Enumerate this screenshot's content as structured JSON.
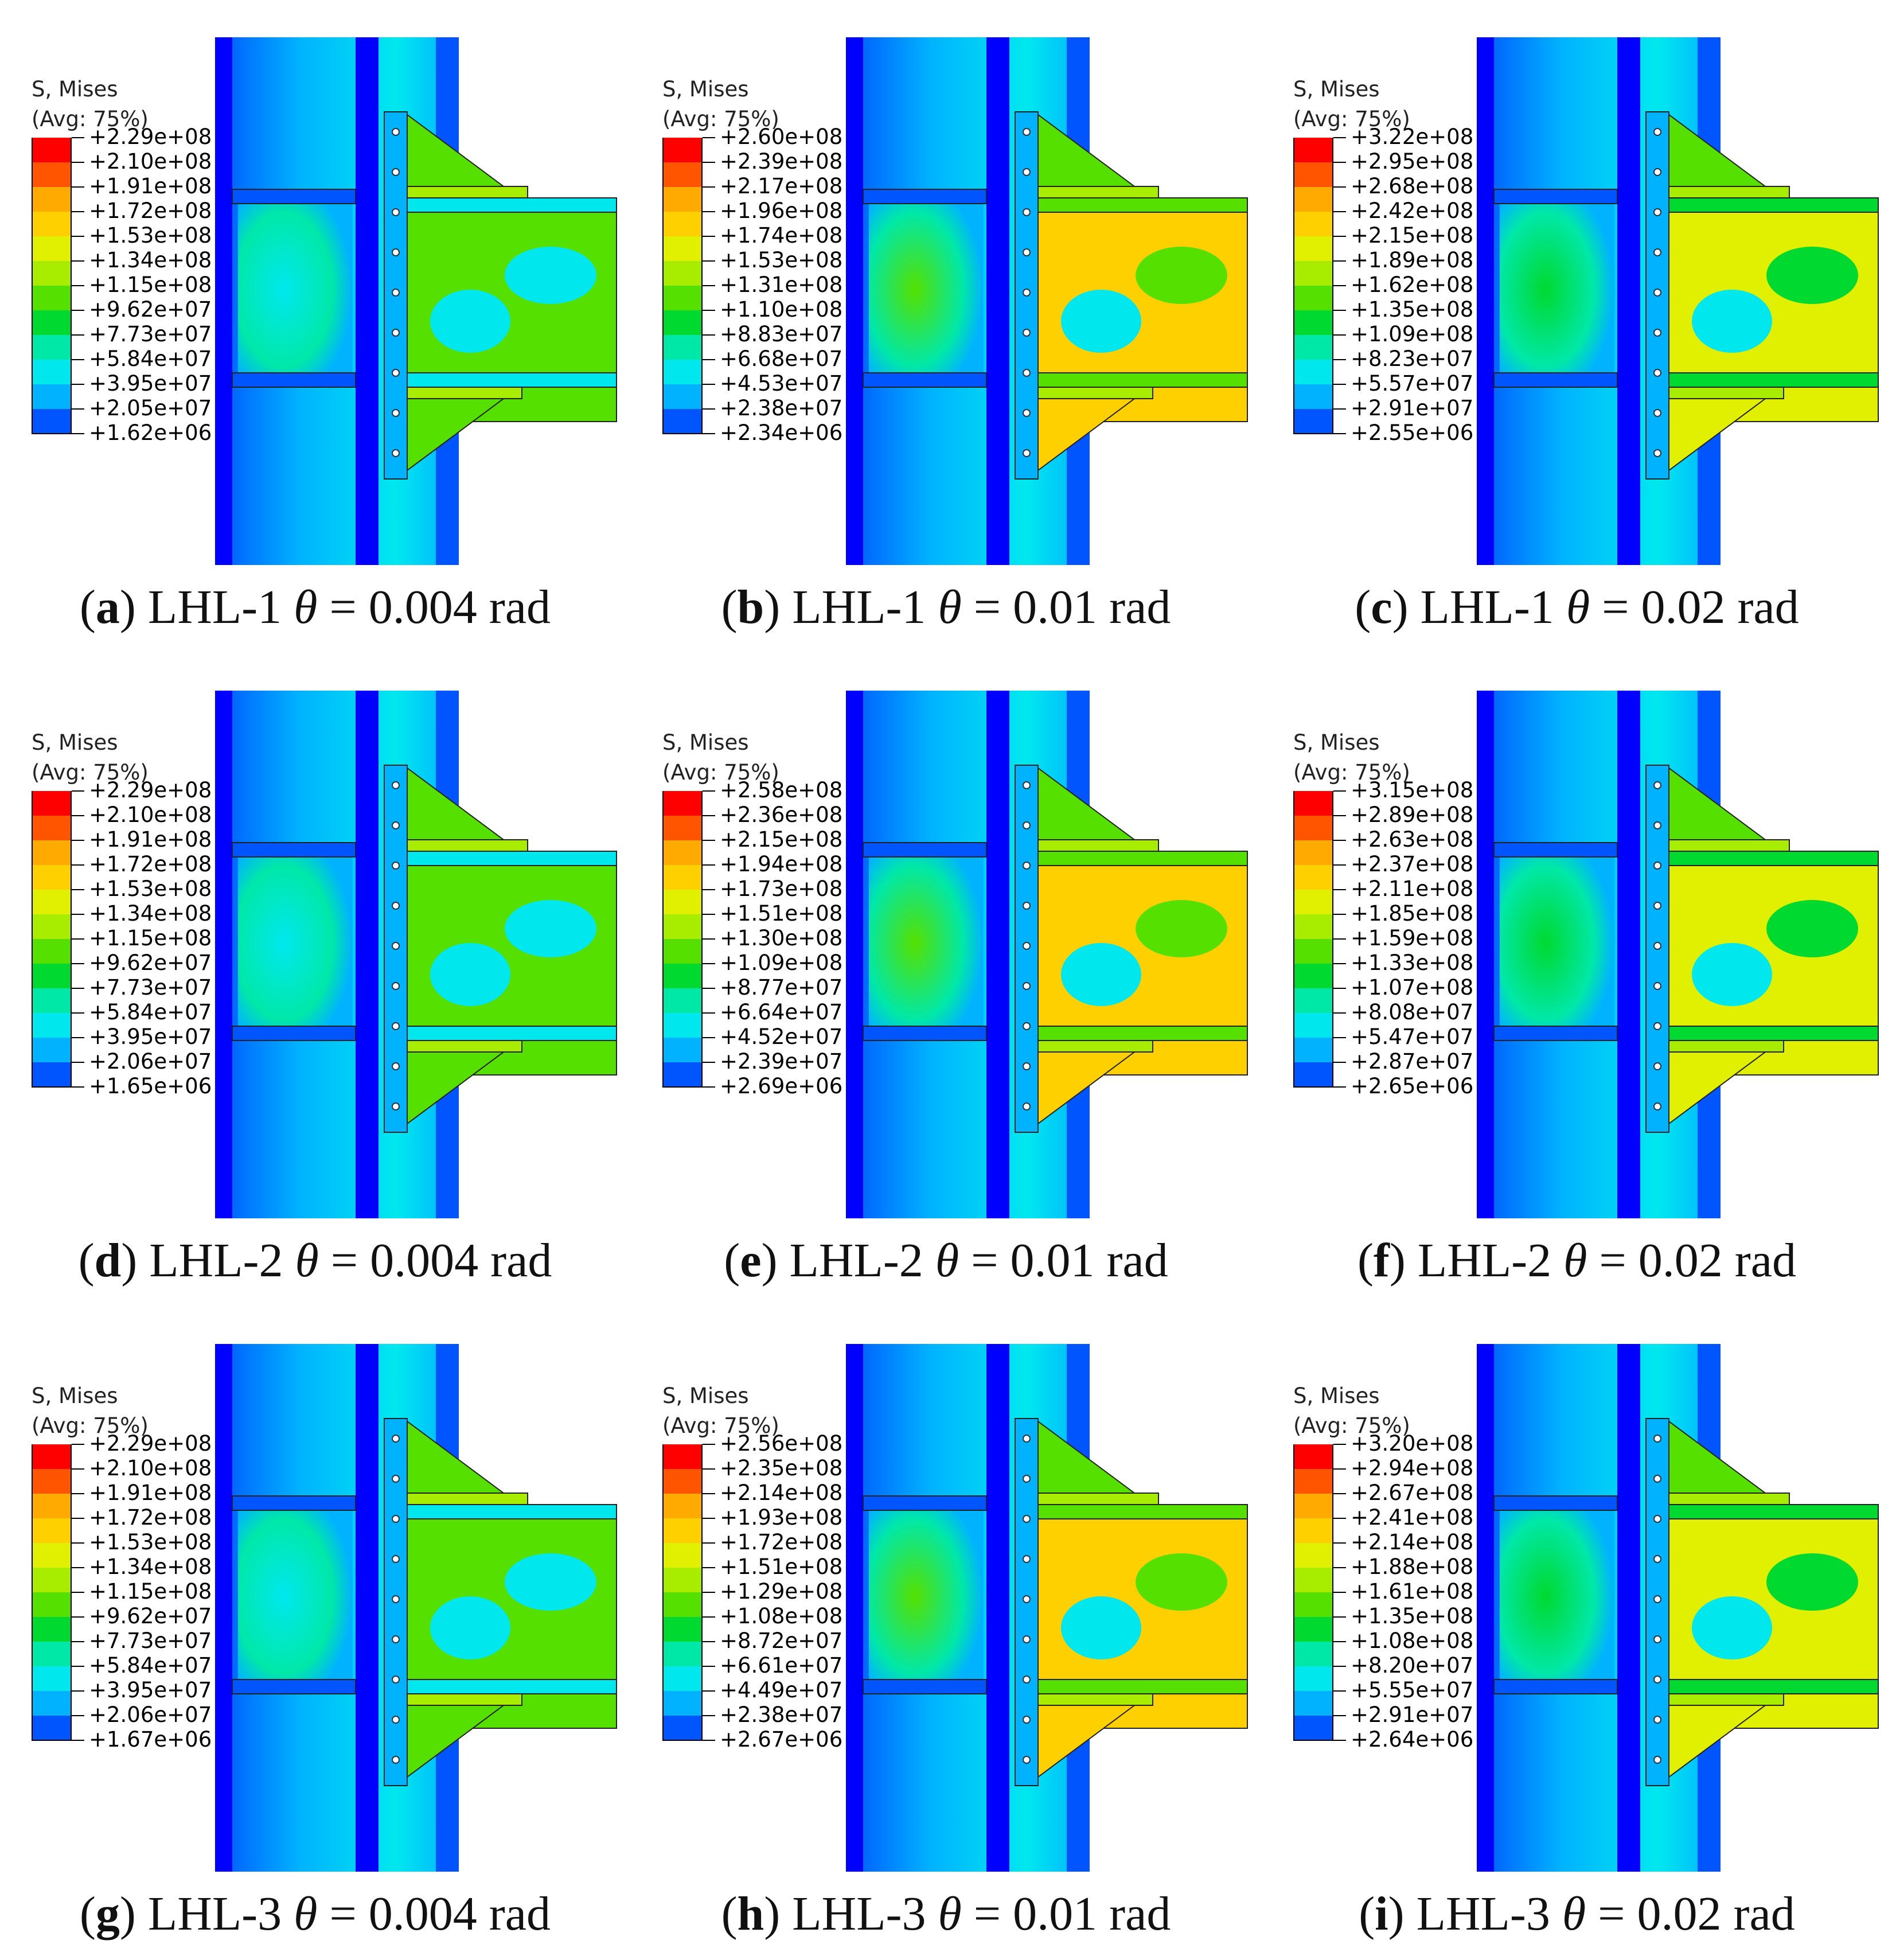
{
  "legend_colors": [
    "#ff0000",
    "#ff5500",
    "#ffaa00",
    "#ffd000",
    "#e0f000",
    "#a8ec00",
    "#55e000",
    "#00d930",
    "#00e8a8",
    "#00e8ee",
    "#00b2ff",
    "#0055ff",
    "#0000ff"
  ],
  "panels": [
    {
      "label": "a",
      "specimen": "LHL-1",
      "theta_symbol": "θ",
      "rotation": "= 0.004 rad",
      "legend_title": "S, Mises",
      "legend_subtitle": "(Avg: 75%)",
      "legend_values": [
        "+2.29e+08",
        "+2.10e+08",
        "+1.91e+08",
        "+1.72e+08",
        "+1.53e+08",
        "+1.34e+08",
        "+1.15e+08",
        "+9.62e+07",
        "+7.73e+07",
        "+5.84e+07",
        "+3.95e+07",
        "+2.05e+07",
        "+1.62e+06"
      ],
      "stress_level": 0.3
    },
    {
      "label": "b",
      "specimen": "LHL-1",
      "theta_symbol": "θ",
      "rotation": "= 0.01 rad",
      "legend_title": "S, Mises",
      "legend_subtitle": "(Avg: 75%)",
      "legend_values": [
        "+2.60e+08",
        "+2.39e+08",
        "+2.17e+08",
        "+1.96e+08",
        "+1.74e+08",
        "+1.53e+08",
        "+1.31e+08",
        "+1.10e+08",
        "+8.83e+07",
        "+6.68e+07",
        "+4.53e+07",
        "+2.38e+07",
        "+2.34e+06"
      ],
      "stress_level": 0.8
    },
    {
      "label": "c",
      "specimen": "LHL-1",
      "theta_symbol": "θ",
      "rotation": "= 0.02 rad",
      "legend_title": "S, Mises",
      "legend_subtitle": "(Avg: 75%)",
      "legend_values": [
        "+3.22e+08",
        "+2.95e+08",
        "+2.68e+08",
        "+2.42e+08",
        "+2.15e+08",
        "+1.89e+08",
        "+1.62e+08",
        "+1.35e+08",
        "+1.09e+08",
        "+8.23e+07",
        "+5.57e+07",
        "+2.91e+07",
        "+2.55e+06"
      ],
      "stress_level": 0.6
    },
    {
      "label": "d",
      "specimen": "LHL-2",
      "theta_symbol": "θ",
      "rotation": "= 0.004 rad",
      "legend_title": "S, Mises",
      "legend_subtitle": "(Avg: 75%)",
      "legend_values": [
        "+2.29e+08",
        "+2.10e+08",
        "+1.91e+08",
        "+1.72e+08",
        "+1.53e+08",
        "+1.34e+08",
        "+1.15e+08",
        "+9.62e+07",
        "+7.73e+07",
        "+5.84e+07",
        "+3.95e+07",
        "+2.06e+07",
        "+1.65e+06"
      ],
      "stress_level": 0.3
    },
    {
      "label": "e",
      "specimen": "LHL-2",
      "theta_symbol": "θ",
      "rotation": "= 0.01 rad",
      "legend_title": "S, Mises",
      "legend_subtitle": "(Avg: 75%)",
      "legend_values": [
        "+2.58e+08",
        "+2.36e+08",
        "+2.15e+08",
        "+1.94e+08",
        "+1.73e+08",
        "+1.51e+08",
        "+1.30e+08",
        "+1.09e+08",
        "+8.77e+07",
        "+6.64e+07",
        "+4.52e+07",
        "+2.39e+07",
        "+2.69e+06"
      ],
      "stress_level": 0.8
    },
    {
      "label": "f",
      "specimen": "LHL-2",
      "theta_symbol": "θ",
      "rotation": "= 0.02 rad",
      "legend_title": "S, Mises",
      "legend_subtitle": "(Avg: 75%)",
      "legend_values": [
        "+3.15e+08",
        "+2.89e+08",
        "+2.63e+08",
        "+2.37e+08",
        "+2.11e+08",
        "+1.85e+08",
        "+1.59e+08",
        "+1.33e+08",
        "+1.07e+08",
        "+8.08e+07",
        "+5.47e+07",
        "+2.87e+07",
        "+2.65e+06"
      ],
      "stress_level": 0.6
    },
    {
      "label": "g",
      "specimen": "LHL-3",
      "theta_symbol": "θ",
      "rotation": "= 0.004 rad",
      "legend_title": "S, Mises",
      "legend_subtitle": "(Avg: 75%)",
      "legend_values": [
        "+2.29e+08",
        "+2.10e+08",
        "+1.91e+08",
        "+1.72e+08",
        "+1.53e+08",
        "+1.34e+08",
        "+1.15e+08",
        "+9.62e+07",
        "+7.73e+07",
        "+5.84e+07",
        "+3.95e+07",
        "+2.06e+07",
        "+1.67e+06"
      ],
      "stress_level": 0.3
    },
    {
      "label": "h",
      "specimen": "LHL-3",
      "theta_symbol": "θ",
      "rotation": "= 0.01 rad",
      "legend_title": "S, Mises",
      "legend_subtitle": "(Avg: 75%)",
      "legend_values": [
        "+2.56e+08",
        "+2.35e+08",
        "+2.14e+08",
        "+1.93e+08",
        "+1.72e+08",
        "+1.51e+08",
        "+1.29e+08",
        "+1.08e+08",
        "+8.72e+07",
        "+6.61e+07",
        "+4.49e+07",
        "+2.38e+07",
        "+2.67e+06"
      ],
      "stress_level": 0.8
    },
    {
      "label": "i",
      "specimen": "LHL-3",
      "theta_symbol": "θ",
      "rotation": "= 0.02 rad",
      "legend_title": "S, Mises",
      "legend_subtitle": "(Avg: 75%)",
      "legend_values": [
        "+3.20e+08",
        "+2.94e+08",
        "+2.67e+08",
        "+2.41e+08",
        "+2.14e+08",
        "+1.88e+08",
        "+1.61e+08",
        "+1.35e+08",
        "+1.08e+08",
        "+8.20e+07",
        "+5.55e+07",
        "+2.91e+07",
        "+2.64e+06"
      ],
      "stress_level": 0.6
    }
  ]
}
